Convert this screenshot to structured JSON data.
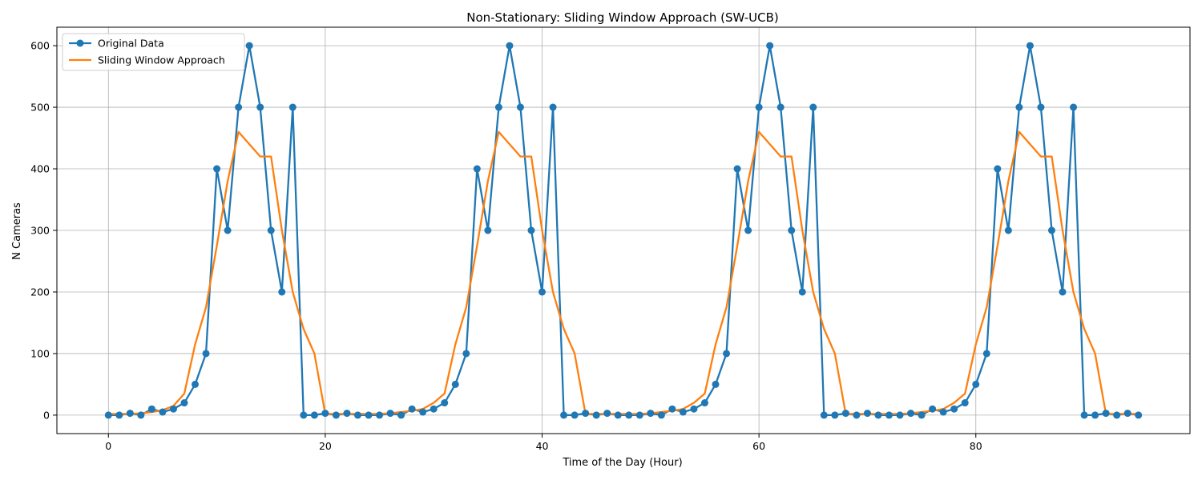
{
  "chart_data": {
    "type": "line",
    "title": "Non-Stationary: Sliding Window Approach (SW-UCB)",
    "xlabel": "Time of the Day (Hour)",
    "ylabel": "N Cameras",
    "xlim": [
      -4.75,
      99.75
    ],
    "ylim": [
      -30,
      630
    ],
    "xticks": [
      0,
      20,
      40,
      60,
      80
    ],
    "yticks": [
      0,
      100,
      200,
      300,
      400,
      500,
      600
    ],
    "grid": true,
    "legend_position": "top-left",
    "series": [
      {
        "name": "Original Data",
        "color": "#1f77b4",
        "marker": "circle",
        "values": [
          0,
          0,
          3,
          0,
          10,
          5,
          10,
          20,
          50,
          100,
          400,
          300,
          500,
          600,
          500,
          300,
          200,
          500,
          0,
          0,
          3,
          0,
          3,
          0,
          0,
          0,
          3,
          0,
          10,
          5,
          10,
          20,
          50,
          100,
          400,
          300,
          500,
          600,
          500,
          300,
          200,
          500,
          0,
          0,
          3,
          0,
          3,
          0,
          0,
          0,
          3,
          0,
          10,
          5,
          10,
          20,
          50,
          100,
          400,
          300,
          500,
          600,
          500,
          300,
          200,
          500,
          0,
          0,
          3,
          0,
          3,
          0,
          0,
          0,
          3,
          0,
          10,
          5,
          10,
          20,
          50,
          100,
          400,
          300,
          500,
          600,
          500,
          300,
          200,
          500,
          0,
          0,
          3,
          0,
          3,
          0
        ]
      },
      {
        "name": "Sliding Window Approach",
        "color": "#ff7f0e",
        "marker": "none",
        "values": [
          2,
          2,
          2,
          3,
          5,
          8,
          15,
          35,
          115,
          175,
          275,
          380,
          460,
          440,
          420,
          420,
          300,
          200,
          140,
          100,
          2,
          2,
          2,
          2,
          2,
          2,
          3,
          5,
          7,
          10,
          20,
          35,
          115,
          175,
          275,
          380,
          460,
          440,
          420,
          420,
          300,
          200,
          140,
          100,
          2,
          2,
          2,
          2,
          2,
          2,
          3,
          5,
          7,
          10,
          20,
          35,
          115,
          175,
          275,
          380,
          460,
          440,
          420,
          420,
          300,
          200,
          140,
          100,
          2,
          2,
          2,
          2,
          2,
          2,
          3,
          5,
          7,
          10,
          20,
          35,
          115,
          175,
          275,
          380,
          460,
          440,
          420,
          420,
          300,
          200,
          140,
          100,
          2,
          2,
          2,
          2
        ]
      }
    ]
  }
}
